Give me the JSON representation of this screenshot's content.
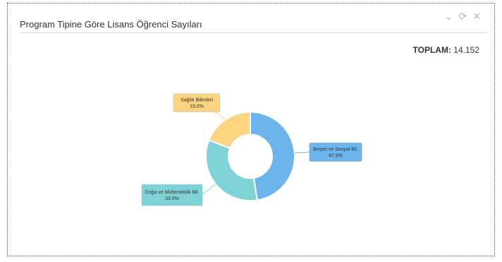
{
  "window": {
    "title": "Program Tipine Göre Lisans Öğrenci Sayıları",
    "icons": [
      "chevron-down-icon",
      "refresh-icon",
      "close-icon"
    ]
  },
  "summary": {
    "total_label": "TOPLAM:",
    "total_value": "14.152"
  },
  "chart_data": {
    "type": "pie",
    "donut": true,
    "slices": [
      {
        "label": "Beşeri ve Sosyal Bil.",
        "value": 47.5,
        "value_label": "47.5%",
        "color": "#6cb4ec",
        "label_color": "#6cb4ec"
      },
      {
        "label": "Doğa ve Mühendislik Bil.",
        "value": 33.5,
        "value_label": "33.5%",
        "color": "#7fd3d6",
        "label_color": "#7fd3d6"
      },
      {
        "label": "Sağlık Bilimleri",
        "value": 19.0,
        "value_label": "19.0%",
        "color": "#fdd47f",
        "label_color": "#fdd47f"
      }
    ]
  }
}
